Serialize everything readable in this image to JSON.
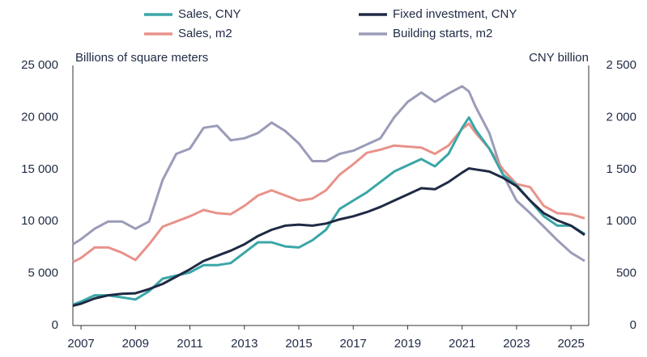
{
  "chart_data": {
    "type": "line",
    "y_label": "Billions of square meters",
    "y2_label": "CNY billion",
    "x": [
      2006.7,
      2007,
      2007.5,
      2008,
      2008.5,
      2009,
      2009.5,
      2010,
      2010.5,
      2011,
      2011.5,
      2012,
      2012.5,
      2013,
      2013.5,
      2014,
      2014.5,
      2015,
      2015.5,
      2016,
      2016.5,
      2017,
      2017.5,
      2018,
      2018.5,
      2019,
      2019.5,
      2020,
      2020.5,
      2021,
      2021.25,
      2021.5,
      2022,
      2022.5,
      2023,
      2023.5,
      2024,
      2024.5,
      2025,
      2025.5
    ],
    "series": [
      {
        "name": "Sales, CNY",
        "color": "#3aa6a8",
        "axis": "y2",
        "values": [
          200,
          230,
          290,
          290,
          270,
          250,
          330,
          450,
          480,
          510,
          580,
          580,
          600,
          700,
          800,
          800,
          760,
          750,
          820,
          920,
          1120,
          1200,
          1280,
          1380,
          1480,
          1540,
          1600,
          1530,
          1650,
          1900,
          2000,
          1880,
          1700,
          1450,
          1350,
          1200,
          1050,
          960,
          960,
          880
        ]
      },
      {
        "name": "Fixed investment, CNY",
        "color": "#1f2a44",
        "axis": "y2",
        "values": [
          190,
          210,
          260,
          290,
          305,
          310,
          350,
          400,
          470,
          540,
          620,
          670,
          720,
          780,
          860,
          920,
          960,
          970,
          960,
          980,
          1020,
          1050,
          1090,
          1140,
          1200,
          1260,
          1320,
          1310,
          1380,
          1470,
          1510,
          1500,
          1480,
          1420,
          1340,
          1200,
          1080,
          1010,
          960,
          870
        ]
      },
      {
        "name": "Sales, m2",
        "color": "#e8928a",
        "axis": "y",
        "values": [
          6100,
          6500,
          7500,
          7500,
          7000,
          6300,
          7800,
          9500,
          10000,
          10500,
          11100,
          10800,
          10700,
          11500,
          12500,
          13000,
          12500,
          12000,
          12200,
          13000,
          14500,
          15500,
          16600,
          16900,
          17300,
          17200,
          17100,
          16500,
          17300,
          18900,
          19400,
          18500,
          17000,
          15000,
          13600,
          13300,
          11500,
          10800,
          10700,
          10300
        ]
      },
      {
        "name": "Building starts, m2",
        "color": "#9a9cb8",
        "axis": "y",
        "values": [
          7800,
          8300,
          9300,
          10000,
          10000,
          9300,
          10000,
          14000,
          16500,
          17000,
          19000,
          19200,
          17800,
          18000,
          18500,
          19500,
          18700,
          17500,
          15800,
          15800,
          16500,
          16800,
          17400,
          18000,
          20000,
          21500,
          22400,
          21500,
          22300,
          23000,
          22500,
          21000,
          18500,
          14500,
          12000,
          10800,
          9500,
          8200,
          7000,
          6200
        ]
      }
    ],
    "xlim": [
      2006.7,
      2025.65
    ],
    "xticks": [
      2007,
      2009,
      2011,
      2013,
      2015,
      2017,
      2019,
      2021,
      2023,
      2025
    ],
    "ylim": [
      0,
      25000
    ],
    "yticks": [
      0,
      {
        "value": 5000,
        "label": "5 000"
      },
      {
        "value": 10000,
        "label": "10 000"
      },
      {
        "value": 15000,
        "label": "15 000"
      },
      {
        "value": 20000,
        "label": "20 000"
      },
      {
        "value": 25000,
        "label": "25 000"
      }
    ],
    "y2lim": [
      0,
      2500
    ],
    "y2ticks": [
      0,
      500,
      {
        "value": 1000,
        "label": "1 000"
      },
      {
        "value": 1500,
        "label": "1 500"
      },
      {
        "value": 2000,
        "label": "2 000"
      },
      {
        "value": 2500,
        "label": "2 500"
      }
    ],
    "grid": false
  }
}
